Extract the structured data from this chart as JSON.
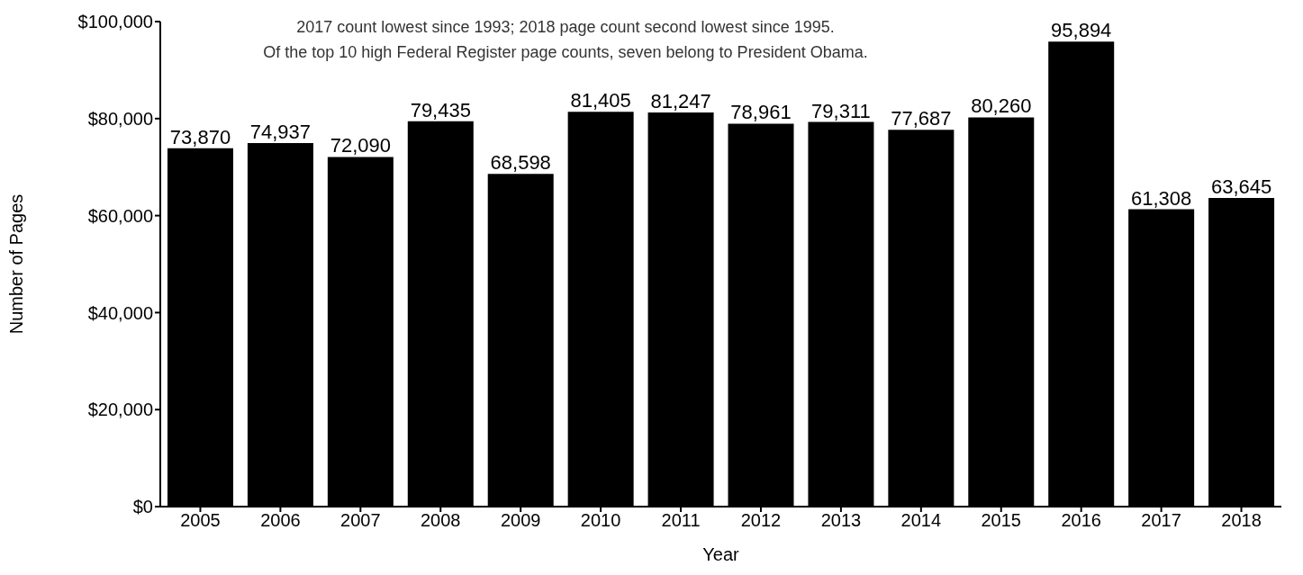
{
  "chart_data": {
    "type": "bar",
    "xlabel": "Year",
    "ylabel": "Number of Pages",
    "annotations": [
      "2017 count lowest since 1993; 2018 page count second lowest since 1995.",
      "Of the top 10 high Federal Register page counts, seven belong to President Obama."
    ],
    "categories": [
      "2005",
      "2006",
      "2007",
      "2008",
      "2009",
      "2010",
      "2011",
      "2012",
      "2013",
      "2014",
      "2015",
      "2016",
      "2017",
      "2018"
    ],
    "values": [
      73870,
      74937,
      72090,
      79435,
      68598,
      81405,
      81247,
      78961,
      79311,
      77687,
      80260,
      95894,
      61308,
      63645
    ],
    "value_labels": [
      "73,870",
      "74,937",
      "72,090",
      "79,435",
      "68,598",
      "81,405",
      "81,247",
      "78,961",
      "79,311",
      "77,687",
      "80,260",
      "95,894",
      "61,308",
      "63,645"
    ],
    "color": "#000000",
    "ylim": [
      0,
      100000
    ],
    "yticks": [
      {
        "value": 0,
        "label": "$0"
      },
      {
        "value": 20000,
        "label": "$20,000"
      },
      {
        "value": 40000,
        "label": "$40,000"
      },
      {
        "value": 60000,
        "label": "$60,000"
      },
      {
        "value": 80000,
        "label": "$80,000"
      },
      {
        "value": 100000,
        "label": "$100,000"
      }
    ]
  }
}
